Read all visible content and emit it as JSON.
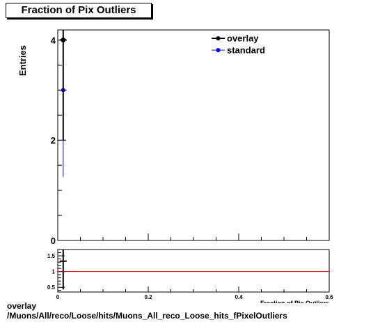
{
  "chart_data": [
    {
      "type": "scatter",
      "title": "Fraction of Pix Outliers",
      "ylabel": "Entries",
      "xlabel": "Fraction of Pix Outliers",
      "xlim": [
        0,
        0.6
      ],
      "ylim": [
        0,
        4.2
      ],
      "x_ticks": [
        "0",
        "0.2",
        "0.4",
        "0.6"
      ],
      "y_ticks": [
        "0",
        "2",
        "4"
      ],
      "legend": {
        "placement": "top-right"
      },
      "series": [
        {
          "name": "overlay",
          "color": "#000000",
          "points": [
            {
              "x": 0.012,
              "y": 4,
              "err": 2
            }
          ]
        },
        {
          "name": "standard",
          "color": "#0000ff",
          "points": [
            {
              "x": 0.012,
              "y": 3,
              "err": 1.73
            }
          ]
        }
      ]
    },
    {
      "type": "scatter",
      "title": "",
      "xlim": [
        0,
        0.6
      ],
      "ylim": [
        0.35,
        1.7
      ],
      "x_ticks": [
        "0",
        "0.2",
        "0.4",
        "0.6"
      ],
      "y_ticks": [
        "0.5",
        "1",
        "1.5"
      ],
      "reference_line": {
        "y": 1,
        "color": "#cc0000"
      },
      "series": [
        {
          "name": "ratio",
          "color": "#000000",
          "points": [
            {
              "x": 0.012,
              "y": 1.33,
              "err": 0.9
            }
          ]
        }
      ]
    }
  ],
  "footer": {
    "line1": "overlay",
    "line2": "/Muons/All/reco/Loose/hits/Muons_All_reco_Loose_hits_fPixelOutliers"
  }
}
